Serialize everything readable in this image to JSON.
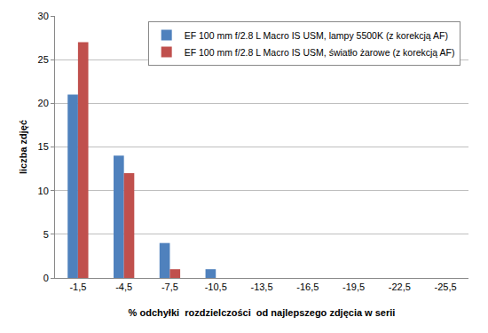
{
  "chart_data": {
    "type": "bar",
    "x_label": "% odchyłki  rozdzielczości  od najlepszego zdjęcia w serii",
    "y_label": "liczba zdjęć",
    "categories": [
      "-1,5",
      "-4,5",
      "-7,5",
      "-10,5",
      "-13,5",
      "-16,5",
      "-19,5",
      "-22,5",
      "-25,5"
    ],
    "series": [
      {
        "name": "EF 100 mm f/2.8 L Macro IS USM, lampy 5500K (z korekcją AF)",
        "color": "#4f81bd",
        "values": [
          21,
          14,
          4,
          1,
          0,
          0,
          0,
          0,
          0
        ]
      },
      {
        "name": "EF 100 mm f/2.8 L Macro IS USM, światło żarowe (z korekcją AF)",
        "color": "#c0504d",
        "values": [
          27,
          12,
          1,
          0,
          0,
          0,
          0,
          0,
          0
        ]
      }
    ],
    "ylim": [
      0,
      30
    ],
    "yticks": [
      0,
      5,
      10,
      15,
      20,
      25,
      30
    ],
    "grid": true,
    "legend": "upper right"
  }
}
